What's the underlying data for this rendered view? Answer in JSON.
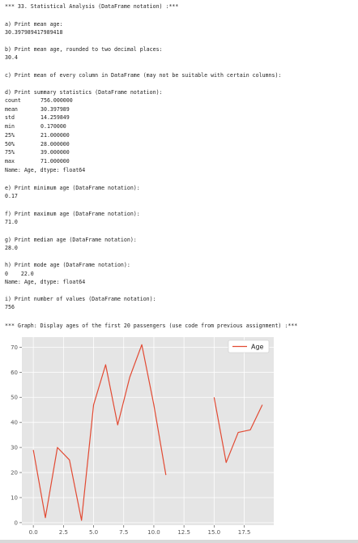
{
  "header": "*** 33. Statistical Analysis (DataFrame notation) :***",
  "a": {
    "label": "a) Print mean age:",
    "value": "30.397989417989418"
  },
  "b": {
    "label": "b) Print mean age, rounded to two decimal places:",
    "value": "30.4"
  },
  "c": {
    "label": "c) Print mean of every column in DataFrame (may not be suitable with certain columns):"
  },
  "d": {
    "label": "d) Print summary statistics (DataFrame notation):",
    "rows": [
      {
        "key": "count",
        "value": "756.000000"
      },
      {
        "key": "mean",
        "value": "30.397989"
      },
      {
        "key": "std",
        "value": "14.259849"
      },
      {
        "key": "min",
        "value": "0.170000"
      },
      {
        "key": "25%",
        "value": "21.000000"
      },
      {
        "key": "50%",
        "value": "28.000000"
      },
      {
        "key": "75%",
        "value": "39.000000"
      },
      {
        "key": "max",
        "value": "71.000000"
      }
    ],
    "footer": "Name: Age, dtype: float64"
  },
  "e": {
    "label": "e) Print minimum age (DataFrame notation):",
    "value": "0.17"
  },
  "f": {
    "label": "f) Print maximum age (DataFrame notation):",
    "value": "71.0"
  },
  "g": {
    "label": "g) Print median age (DataFrame notation):",
    "value": "28.0"
  },
  "h": {
    "label": "h) Print mode age (DataFrame notation):",
    "value": "0    22.0",
    "footer": "Name: Age, dtype: float64"
  },
  "i": {
    "label": "i) Print number of values (DataFrame notation):",
    "value": "756"
  },
  "graph_title": "*** Graph: Display ages of the first 20 passengers (use code from previous assignment) :***",
  "chart_data": {
    "type": "line",
    "title": "",
    "xlabel": "",
    "ylabel": "",
    "xlim": [
      -0.95,
      19.95
    ],
    "ylim": [
      -1,
      74
    ],
    "x_ticks": [
      0.0,
      2.5,
      5.0,
      7.5,
      10.0,
      12.5,
      15.0,
      17.5
    ],
    "x_tick_labels": [
      "0.0",
      "2.5",
      "5.0",
      "7.5",
      "10.0",
      "12.5",
      "15.0",
      "17.5"
    ],
    "y_ticks": [
      0,
      10,
      20,
      30,
      40,
      50,
      60,
      70
    ],
    "y_tick_labels": [
      "0",
      "10",
      "20",
      "30",
      "40",
      "50",
      "60",
      "70"
    ],
    "grid": true,
    "legend": "top-right",
    "series": [
      {
        "name": "Age",
        "color": "#e24a33",
        "x": [
          0,
          1,
          2,
          3,
          4,
          5,
          6,
          7,
          8,
          9,
          10,
          11,
          12,
          13,
          14,
          15,
          16,
          17,
          18,
          19
        ],
        "values": [
          29,
          2,
          30,
          25,
          0.92,
          47,
          63,
          39,
          58,
          71,
          47,
          19,
          null,
          null,
          null,
          50,
          24,
          36,
          37,
          47
        ]
      }
    ]
  }
}
